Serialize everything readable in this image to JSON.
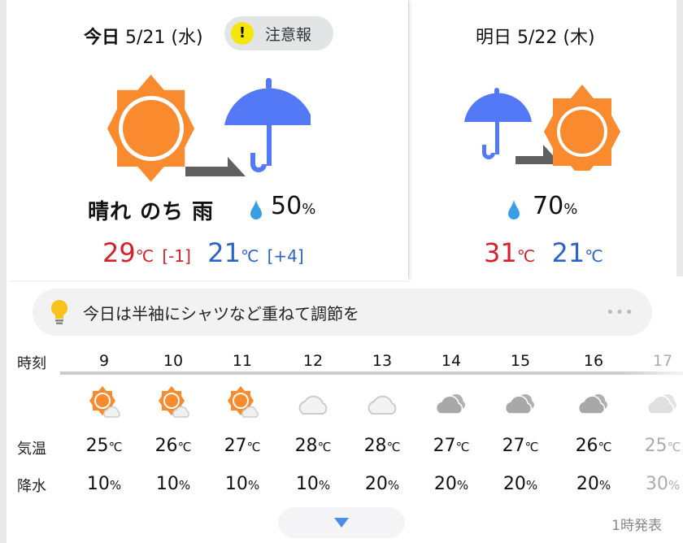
{
  "today": {
    "label": "今日",
    "date": "5/21",
    "weekday": "(水)",
    "alert": "注意報",
    "alert_icon": "exclamation-icon",
    "weather_icons": [
      "sun-icon",
      "arrow-icon",
      "umbrella-icon"
    ],
    "description": "晴れ のち 雨",
    "precip": "50",
    "precip_unit": "%",
    "high": "29",
    "high_diff": "[-1]",
    "low": "21",
    "low_diff": "[+4]",
    "unit": "℃"
  },
  "tomorrow": {
    "label": "明日",
    "date": "5/22",
    "weekday": "(木)",
    "weather_icons": [
      "umbrella-icon",
      "arrow-icon",
      "sun-icon"
    ],
    "precip": "70",
    "precip_unit": "%",
    "high": "31",
    "low": "21",
    "unit": "℃"
  },
  "hint": {
    "text": "今日は半袖にシャツなど重ねて調節を",
    "icon": "lightbulb-icon",
    "more": "•••"
  },
  "hourly": {
    "labels": {
      "time": "時刻",
      "temp": "気温",
      "precip": "降水"
    },
    "hours": [
      {
        "hour": "9",
        "icon": "sun-cloud",
        "temp": "25",
        "precip": "10"
      },
      {
        "hour": "10",
        "icon": "sun-cloud",
        "temp": "26",
        "precip": "10"
      },
      {
        "hour": "11",
        "icon": "sun-cloud",
        "temp": "27",
        "precip": "10"
      },
      {
        "hour": "12",
        "icon": "cloud-light",
        "temp": "28",
        "precip": "10"
      },
      {
        "hour": "13",
        "icon": "cloud-light",
        "temp": "28",
        "precip": "20"
      },
      {
        "hour": "14",
        "icon": "cloud-dark",
        "temp": "27",
        "precip": "20"
      },
      {
        "hour": "15",
        "icon": "cloud-dark",
        "temp": "27",
        "precip": "20"
      },
      {
        "hour": "16",
        "icon": "cloud-dark",
        "temp": "26",
        "precip": "20"
      },
      {
        "hour": "17",
        "icon": "cloud-dark",
        "temp": "25",
        "precip": "30"
      }
    ],
    "temp_unit": "℃",
    "precip_unit": "%"
  },
  "footer": {
    "published": "1時発表"
  },
  "colors": {
    "sun": "#f98a2e",
    "umbrella": "#5479f7",
    "high": "#d4202a",
    "low": "#2c63c8",
    "alert": "#f5e60a",
    "drop": "#3a9ee4"
  }
}
